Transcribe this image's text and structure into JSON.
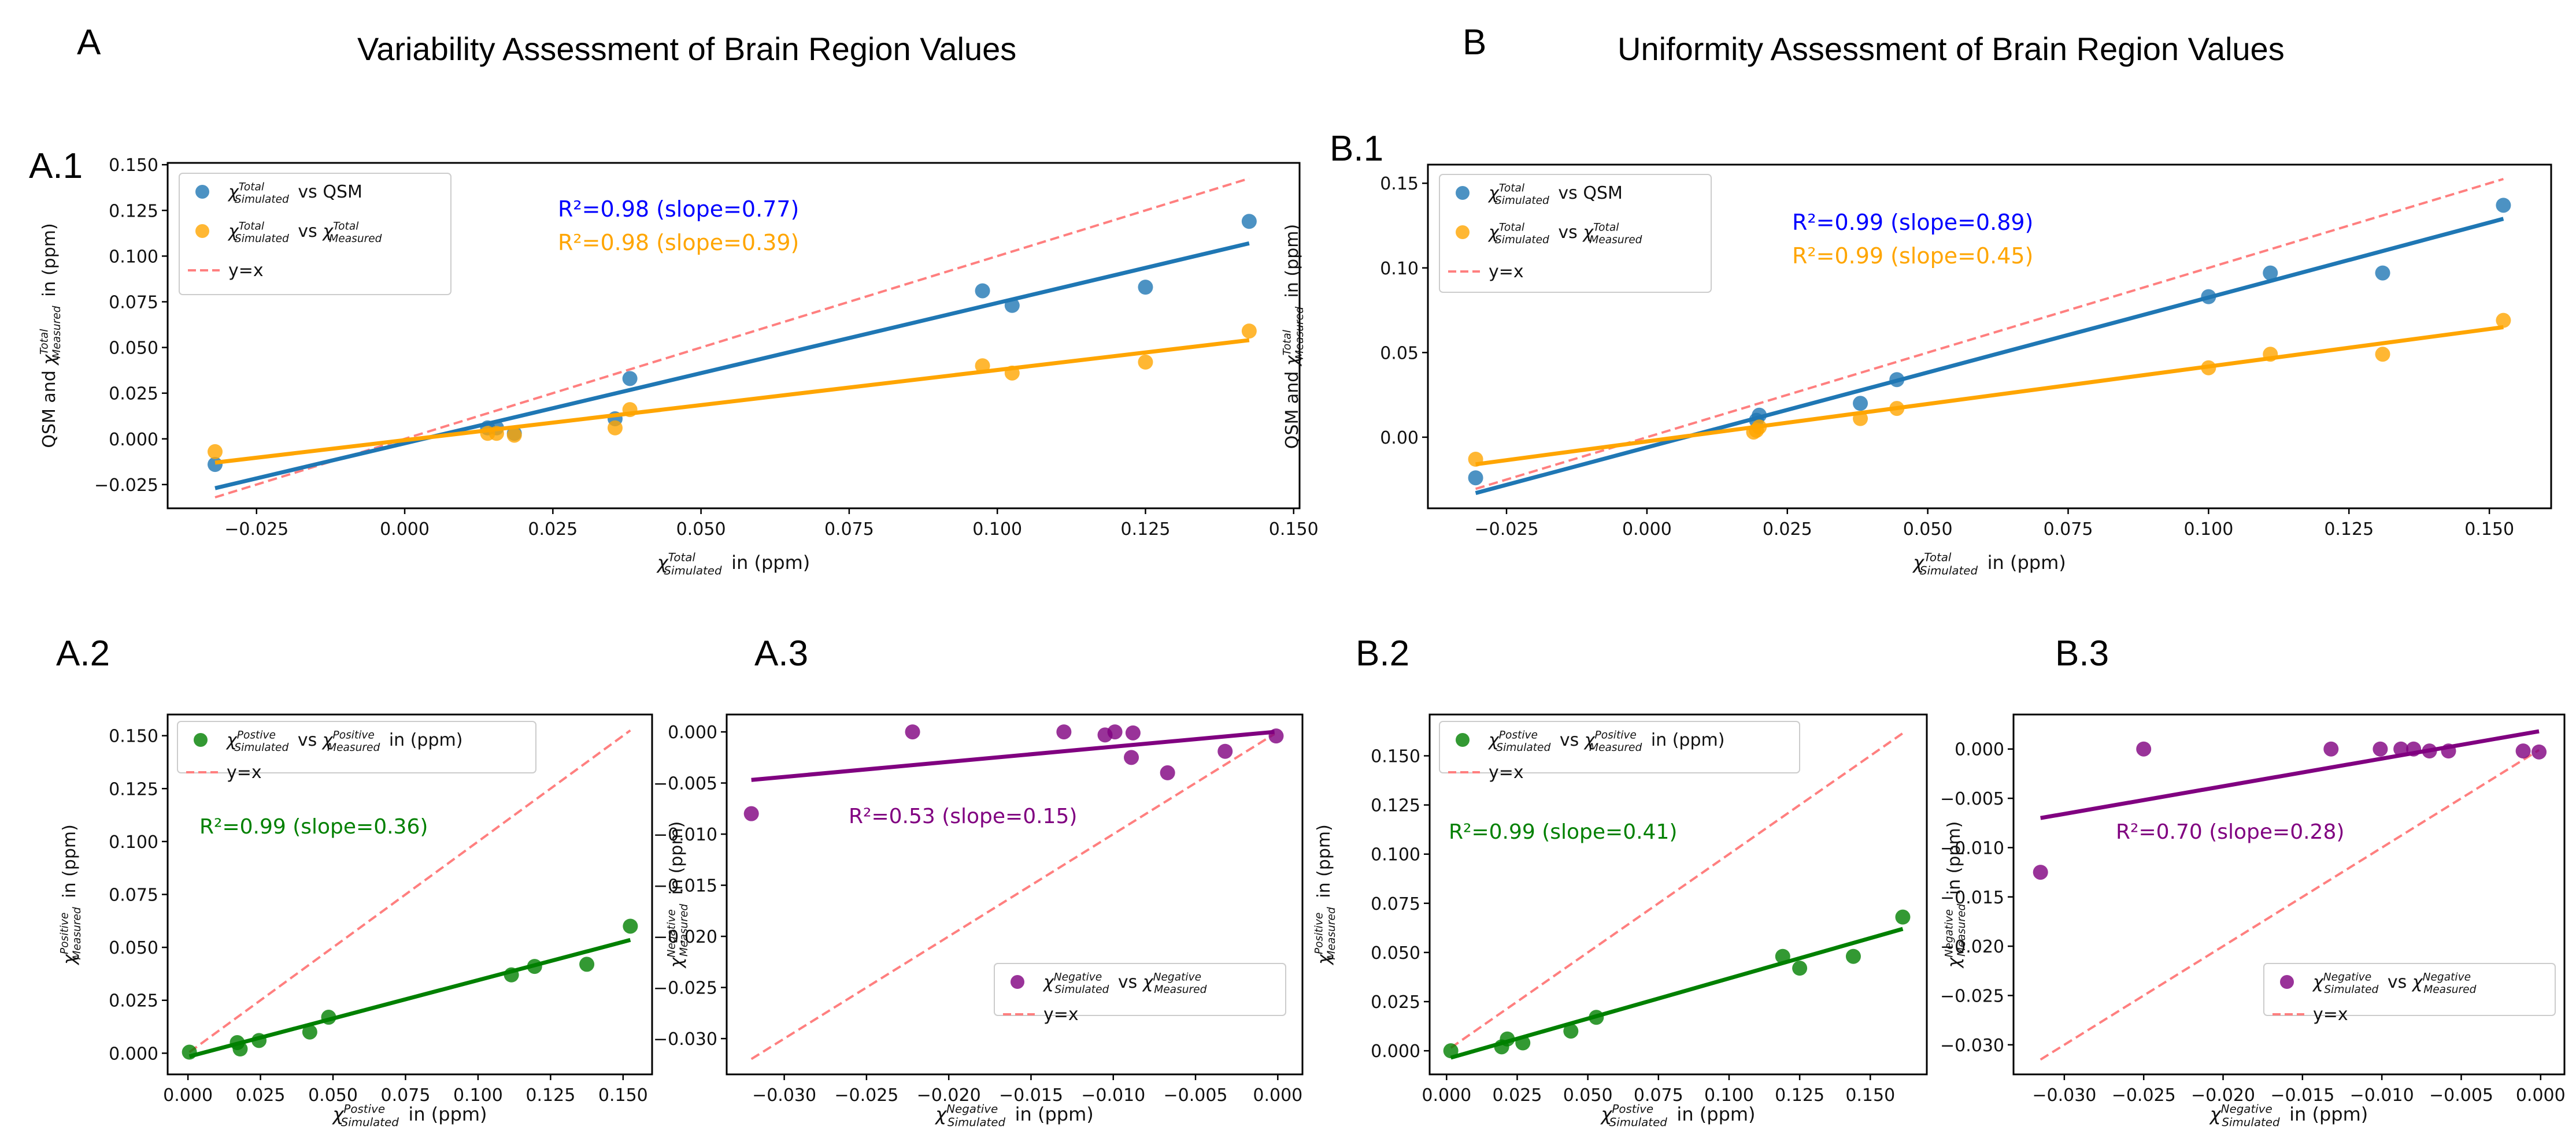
{
  "figure": {
    "section_A": {
      "letter": "A",
      "title": "Variability Assessment of Brain Region Values"
    },
    "section_B": {
      "letter": "B",
      "title": "Uniformity Assessment of Brain Region Values"
    }
  },
  "colors": {
    "qsm": "#1f77b4",
    "measured": "#ffa500",
    "positive": "#008000",
    "negative": "#800080",
    "identity": "#ff7f7f",
    "qsm_text": "#0000ff"
  },
  "chart_data": [
    {
      "id": "A1",
      "panel_label": "A.1",
      "type": "scatter",
      "xlabel": "χ^Total_Simulated in (ppm)",
      "ylabel": "QSM and χ^Total_Measured in (ppm)",
      "xlim": [
        -0.04,
        0.151
      ],
      "ylim": [
        -0.038,
        0.151
      ],
      "xticks": [
        -0.025,
        0.0,
        0.025,
        0.05,
        0.075,
        0.1,
        0.125,
        0.15
      ],
      "xtick_labels": [
        "−0.025",
        "0.000",
        "0.025",
        "0.050",
        "0.075",
        "0.100",
        "0.125",
        "0.150"
      ],
      "yticks": [
        -0.025,
        0.0,
        0.025,
        0.05,
        0.075,
        0.1,
        0.125,
        0.15
      ],
      "ytick_labels": [
        "−0.025",
        "0.000",
        "0.025",
        "0.050",
        "0.075",
        "0.100",
        "0.125",
        "0.150"
      ],
      "legend_position": "upper-left",
      "series": [
        {
          "name": "χ^Total_Simulated vs QSM",
          "color_key": "qsm",
          "x": [
            -0.032,
            0.014,
            0.0155,
            0.0185,
            0.0355,
            0.038,
            0.0975,
            0.1025,
            0.125,
            0.1425
          ],
          "y": [
            -0.014,
            0.006,
            0.006,
            0.003,
            0.011,
            0.033,
            0.081,
            0.073,
            0.083,
            0.119
          ],
          "fit": {
            "x": [
              -0.032,
              0.1425
            ],
            "y": [
              -0.027,
              0.107
            ]
          },
          "annotation": "R²=0.98 (slope=0.77)",
          "annotation_color_key": "qsm_text"
        },
        {
          "name": "χ^Total_Simulated vs χ^Total_Measured",
          "color_key": "measured",
          "x": [
            -0.032,
            0.014,
            0.0155,
            0.0185,
            0.0355,
            0.038,
            0.0975,
            0.1025,
            0.125,
            0.1425
          ],
          "y": [
            -0.007,
            0.003,
            0.003,
            0.002,
            0.006,
            0.016,
            0.04,
            0.036,
            0.042,
            0.059
          ],
          "fit": {
            "x": [
              -0.032,
              0.1425
            ],
            "y": [
              -0.013,
              0.054
            ]
          },
          "annotation": "R²=0.98 (slope=0.39)",
          "annotation_color_key": "measured"
        }
      ],
      "identity_line": {
        "name": "y=x",
        "x": [
          -0.032,
          0.1425
        ]
      }
    },
    {
      "id": "B1",
      "panel_label": "B.1",
      "type": "scatter",
      "xlabel": "χ^Total_Simulated in (ppm)",
      "ylabel": "QSM and χ^Total_Measured in (ppm)",
      "xlim": [
        -0.039,
        0.161
      ],
      "ylim": [
        -0.042,
        0.161
      ],
      "xticks": [
        -0.025,
        0.0,
        0.025,
        0.05,
        0.075,
        0.1,
        0.125,
        0.15
      ],
      "xtick_labels": [
        "−0.025",
        "0.000",
        "0.025",
        "0.050",
        "0.075",
        "0.100",
        "0.125",
        "0.150"
      ],
      "yticks": [
        0.0,
        0.05,
        0.1,
        0.15
      ],
      "ytick_labels": [
        "0.00",
        "0.05",
        "0.10",
        "0.15"
      ],
      "legend_position": "upper-left",
      "series": [
        {
          "name": "χ^Total_Simulated vs QSM",
          "color_key": "qsm",
          "x": [
            -0.0305,
            0.0195,
            0.02,
            0.038,
            0.0445,
            0.1,
            0.111,
            0.131,
            0.1525
          ],
          "y": [
            -0.024,
            0.01,
            0.013,
            0.02,
            0.034,
            0.083,
            0.097,
            0.097,
            0.137
          ],
          "fit": {
            "x": [
              -0.0305,
              0.1525
            ],
            "y": [
              -0.033,
              0.129
            ]
          },
          "annotation": "R²=0.99 (slope=0.89)",
          "annotation_color_key": "qsm_text"
        },
        {
          "name": "χ^Total_Simulated vs χ^Total_Measured",
          "color_key": "measured",
          "x": [
            -0.0305,
            0.019,
            0.0195,
            0.02,
            0.038,
            0.0445,
            0.1,
            0.111,
            0.131,
            0.1525
          ],
          "y": [
            -0.013,
            0.003,
            0.004,
            0.006,
            0.011,
            0.017,
            0.041,
            0.049,
            0.049,
            0.069
          ],
          "fit": {
            "x": [
              -0.0305,
              0.1525
            ],
            "y": [
              -0.016,
              0.065
            ]
          },
          "annotation": "R²=0.99 (slope=0.45)",
          "annotation_color_key": "measured"
        }
      ],
      "identity_line": {
        "name": "y=x",
        "x": [
          -0.0305,
          0.1525
        ]
      }
    },
    {
      "id": "A2",
      "panel_label": "A.2",
      "type": "scatter",
      "xlabel": "χ^Postive_Simulated in (ppm)",
      "ylabel": "χ^Positive_Measured in (ppm)",
      "xlim": [
        -0.007,
        0.16
      ],
      "ylim": [
        -0.01,
        0.16
      ],
      "xticks": [
        0.0,
        0.025,
        0.05,
        0.075,
        0.1,
        0.125,
        0.15
      ],
      "xtick_labels": [
        "0.000",
        "0.025",
        "0.050",
        "0.075",
        "0.100",
        "0.125",
        "0.150"
      ],
      "yticks": [
        0.0,
        0.025,
        0.05,
        0.075,
        0.1,
        0.125,
        0.15
      ],
      "ytick_labels": [
        "0.000",
        "0.025",
        "0.050",
        "0.075",
        "0.100",
        "0.125",
        "0.150"
      ],
      "legend_position": "upper-left",
      "series": [
        {
          "name": "χ^Postive_Simulated vs χ^Positive_Measured in (ppm)",
          "color_key": "positive",
          "x": [
            0.0005,
            0.017,
            0.018,
            0.0245,
            0.042,
            0.0485,
            0.1115,
            0.1195,
            0.1375,
            0.1525
          ],
          "y": [
            0.0005,
            0.005,
            0.002,
            0.006,
            0.01,
            0.017,
            0.037,
            0.041,
            0.042,
            0.06
          ],
          "fit": {
            "x": [
              0.0005,
              0.1525
            ],
            "y": [
              -0.0015,
              0.0535
            ]
          },
          "annotation": "R²=0.99 (slope=0.36)",
          "annotation_color_key": "positive"
        }
      ],
      "identity_line": {
        "name": "y=x",
        "x": [
          0.0005,
          0.1525
        ]
      }
    },
    {
      "id": "A3",
      "panel_label": "A.3",
      "type": "scatter",
      "xlabel": "χ^Negative_Simulated in (ppm)",
      "ylabel": "χ^Negative_Measured in (ppm)",
      "xlim": [
        -0.0335,
        0.0015
      ],
      "ylim": [
        -0.0335,
        0.0017
      ],
      "xticks": [
        -0.03,
        -0.025,
        -0.02,
        -0.015,
        -0.01,
        -0.005,
        0.0
      ],
      "xtick_labels": [
        "−0.030",
        "−0.025",
        "−0.020",
        "−0.015",
        "−0.010",
        "−0.005",
        "0.000"
      ],
      "yticks": [
        -0.03,
        -0.025,
        -0.02,
        -0.015,
        -0.01,
        -0.005,
        0.0
      ],
      "ytick_labels": [
        "−0.030",
        "−0.025",
        "−0.020",
        "−0.015",
        "−0.010",
        "−0.005",
        "0.000"
      ],
      "legend_position": "lower-right",
      "series": [
        {
          "name": "χ^Negative_Simulated vs χ^Negative_Measured",
          "color_key": "negative",
          "x": [
            -0.032,
            -0.0222,
            -0.013,
            -0.0105,
            -0.0099,
            -0.0088,
            -0.0089,
            -0.0067,
            -0.0032,
            -0.0001
          ],
          "y": [
            -0.008,
            0.0,
            0.0,
            -0.0003,
            0.0,
            -0.0001,
            -0.0025,
            -0.004,
            -0.0019,
            -0.0004
          ],
          "fit": {
            "x": [
              -0.032,
              -0.0002
            ],
            "y": [
              -0.0047,
              0.0
            ]
          },
          "annotation": "R²=0.53 (slope=0.15)",
          "annotation_color_key": "negative"
        }
      ],
      "identity_line": {
        "name": "y=x",
        "x": [
          -0.032,
          -0.0002
        ]
      }
    },
    {
      "id": "B2",
      "panel_label": "B.2",
      "type": "scatter",
      "xlabel": "χ^Postive_Simulated in (ppm)",
      "ylabel": "χ^Positive_Measured in (ppm)",
      "xlim": [
        -0.006,
        0.17
      ],
      "ylim": [
        -0.012,
        0.171
      ],
      "xticks": [
        0.0,
        0.025,
        0.05,
        0.075,
        0.1,
        0.125,
        0.15
      ],
      "xtick_labels": [
        "0.000",
        "0.025",
        "0.050",
        "0.075",
        "0.100",
        "0.125",
        "0.150"
      ],
      "yticks": [
        0.0,
        0.025,
        0.05,
        0.075,
        0.1,
        0.125,
        0.15
      ],
      "ytick_labels": [
        "0.000",
        "0.025",
        "0.050",
        "0.075",
        "0.100",
        "0.125",
        "0.150"
      ],
      "legend_position": "upper-left",
      "series": [
        {
          "name": "χ^Postive_Simulated vs χ^Positive_Measured in (ppm)",
          "color_key": "positive",
          "x": [
            0.0015,
            0.0195,
            0.0215,
            0.027,
            0.044,
            0.053,
            0.119,
            0.125,
            0.144,
            0.1615
          ],
          "y": [
            0.0,
            0.002,
            0.006,
            0.004,
            0.01,
            0.017,
            0.048,
            0.042,
            0.048,
            0.068
          ],
          "fit": {
            "x": [
              0.0015,
              0.1615
            ],
            "y": [
              -0.0035,
              0.062
            ]
          },
          "annotation": "R²=0.99 (slope=0.41)",
          "annotation_color_key": "positive"
        }
      ],
      "identity_line": {
        "name": "y=x",
        "x": [
          0.0015,
          0.1615
        ]
      }
    },
    {
      "id": "B3",
      "panel_label": "B.3",
      "type": "scatter",
      "xlabel": "χ^Negative_Simulated in (ppm)",
      "ylabel": "χ^Negative_Measured in (ppm)",
      "xlim": [
        -0.0332,
        0.0015
      ],
      "ylim": [
        -0.033,
        0.0035
      ],
      "xticks": [
        -0.03,
        -0.025,
        -0.02,
        -0.015,
        -0.01,
        -0.005,
        0.0
      ],
      "xtick_labels": [
        "−0.030",
        "−0.025",
        "−0.020",
        "−0.015",
        "−0.010",
        "−0.005",
        "0.000"
      ],
      "yticks": [
        -0.03,
        -0.025,
        -0.02,
        -0.015,
        -0.01,
        -0.005,
        0.0
      ],
      "ytick_labels": [
        "−0.030",
        "−0.025",
        "−0.020",
        "−0.015",
        "−0.010",
        "−0.005",
        "0.000"
      ],
      "legend_position": "lower-right",
      "series": [
        {
          "name": "χ^Negative_Simulated vs χ^Negative_Measured",
          "color_key": "negative",
          "x": [
            -0.0315,
            -0.025,
            -0.0132,
            -0.0101,
            -0.0088,
            -0.008,
            -0.007,
            -0.0058,
            -0.0011,
            -0.0001
          ],
          "y": [
            -0.0125,
            0.0,
            0.0,
            0.0,
            0.0,
            0.0,
            -0.0002,
            -0.0002,
            -0.0002,
            -0.0003
          ],
          "fit": {
            "x": [
              -0.0315,
              -0.0001
            ],
            "y": [
              -0.007,
              0.0018
            ]
          },
          "annotation": "R²=0.70 (slope=0.28)",
          "annotation_color_key": "negative"
        }
      ],
      "identity_line": {
        "name": "y=x",
        "x": [
          -0.0315,
          -0.0001
        ]
      }
    }
  ]
}
